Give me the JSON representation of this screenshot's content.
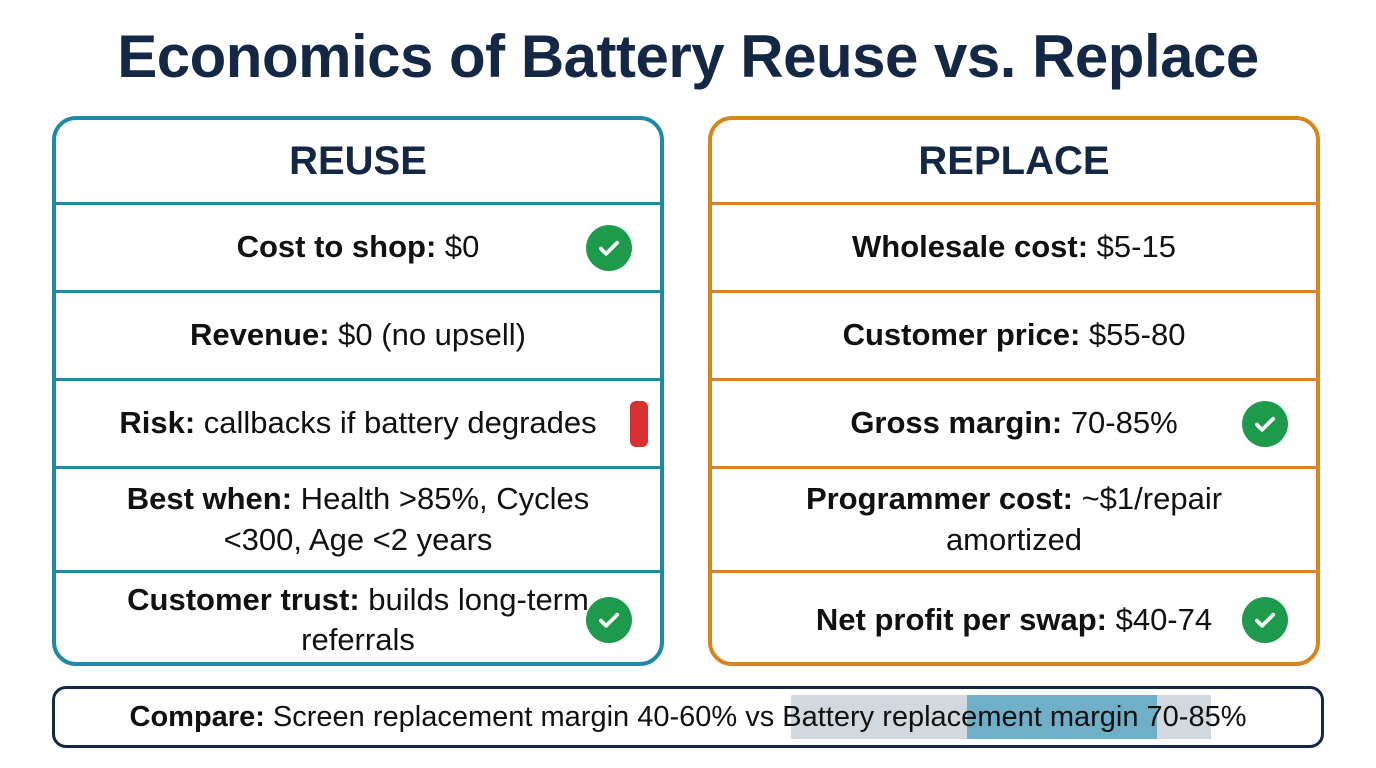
{
  "title": "Economics of Battery Reuse vs. Replace",
  "colors": {
    "title": "#142744",
    "reuse_border": "#1e8aa6",
    "replace_border": "#d6861d",
    "check": "#1d9a4c",
    "risk_flag": "#d63030"
  },
  "reuse": {
    "heading": "REUSE",
    "rows": [
      {
        "label": "Cost to shop:",
        "value": " $0",
        "icon": "check-icon"
      },
      {
        "label": "Revenue:",
        "value": " $0 (no upsell)"
      },
      {
        "label": "Risk:",
        "value": " callbacks if battery degrades",
        "icon": "warning-flag-icon"
      },
      {
        "label": "Best when:",
        "value": " Health >85%, Cycles <300, Age <2 years"
      },
      {
        "label": "Customer trust:",
        "value": " builds long-term referrals",
        "icon": "check-icon"
      }
    ]
  },
  "replace": {
    "heading": "REPLACE",
    "rows": [
      {
        "label": "Wholesale cost:",
        "value": " $5-15"
      },
      {
        "label": "Customer price:",
        "value": " $55-80"
      },
      {
        "label": "Gross margin:",
        "value": " 70-85%",
        "icon": "check-icon"
      },
      {
        "label": "Programmer cost:",
        "value": " ~$1/repair amortized"
      },
      {
        "label": "Net profit per swap:",
        "value": " $40-74",
        "icon": "check-icon"
      }
    ]
  },
  "compare": {
    "label": "Compare:",
    "text": " Screen replacement margin 40-60% vs Battery replacement margin 70-85%"
  }
}
